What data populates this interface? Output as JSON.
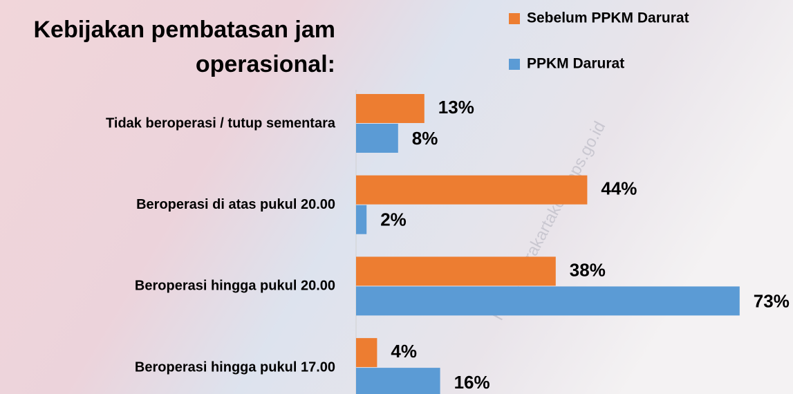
{
  "chart_data": {
    "type": "hbar",
    "title": [
      "Kebijakan pembatasan jam",
      "operasional:"
    ],
    "categories": [
      "Tidak beroperasi / tutup sementara",
      "Beroperasi di atas pukul 20.00",
      "Beroperasi hingga pukul 20.00",
      "Beroperasi hingga pukul 17.00"
    ],
    "series": [
      {
        "name": "Sebelum PPKM Darurat",
        "color": "#ed7d31",
        "values": [
          13,
          44,
          38,
          4
        ],
        "value_labels": [
          "13%",
          "44%",
          "38%",
          "4%"
        ]
      },
      {
        "name": "PPKM Darurat",
        "color": "#5b9bd5",
        "values": [
          8,
          2,
          73,
          16
        ],
        "value_labels": [
          "8%",
          "2%",
          "73%",
          "16%"
        ]
      }
    ],
    "xlim": [
      0,
      80
    ],
    "watermark": "https://surakartakota.bps.go.id"
  }
}
